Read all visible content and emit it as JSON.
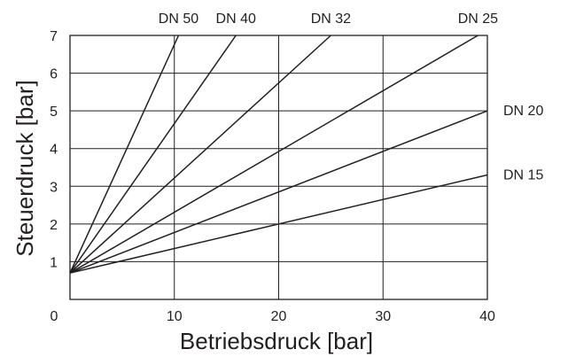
{
  "chart_data": {
    "type": "line",
    "xlabel": "Betriebsdruck [bar]",
    "ylabel": "Steuerdruck [bar]",
    "xlim": [
      0,
      40
    ],
    "ylim": [
      0,
      7
    ],
    "xticks": [
      "0",
      "10",
      "20",
      "30",
      "40"
    ],
    "yticks": [
      "1",
      "2",
      "3",
      "4",
      "5",
      "6",
      "7"
    ],
    "grid": true,
    "series": [
      {
        "name": "DN 50",
        "x": [
          0,
          10.4
        ],
        "y": [
          0.7,
          7
        ]
      },
      {
        "name": "DN 40",
        "x": [
          0,
          15.9
        ],
        "y": [
          0.7,
          7
        ]
      },
      {
        "name": "DN 32",
        "x": [
          0,
          25.0
        ],
        "y": [
          0.7,
          7
        ]
      },
      {
        "name": "DN 25",
        "x": [
          0,
          39.1
        ],
        "y": [
          0.7,
          7
        ]
      },
      {
        "name": "DN 20",
        "x": [
          0,
          40
        ],
        "y": [
          0.7,
          5.0
        ]
      },
      {
        "name": "DN 15",
        "x": [
          0,
          40
        ],
        "y": [
          0.7,
          3.3
        ]
      }
    ]
  },
  "colors": {
    "line": "#231f20",
    "grid": "#231f20",
    "background": "#ffffff"
  }
}
